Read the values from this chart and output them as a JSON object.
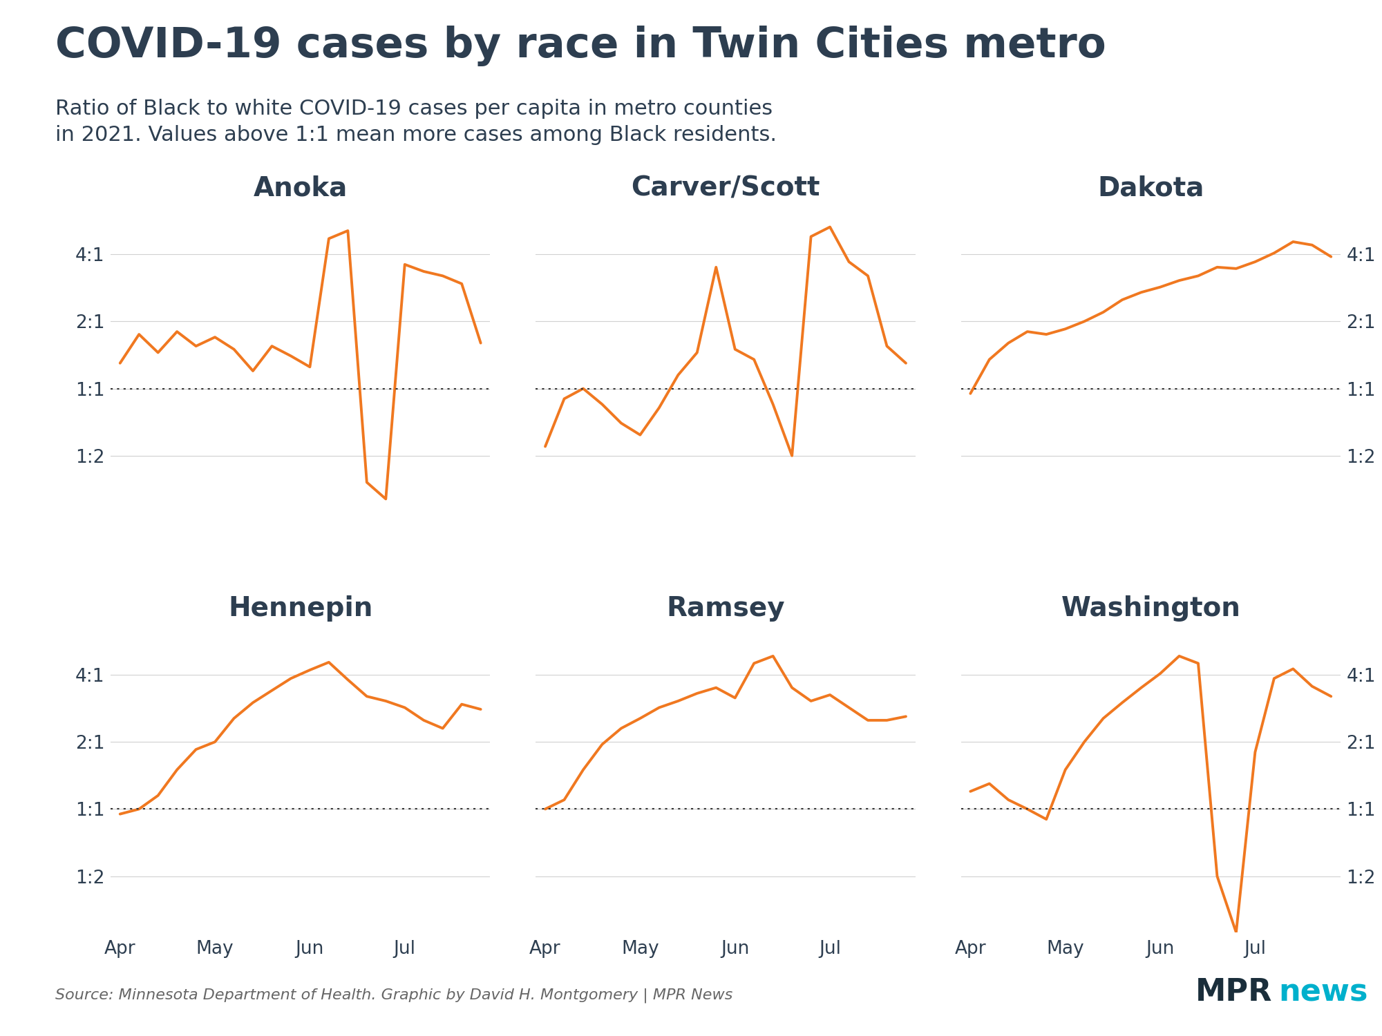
{
  "title": "COVID-19 cases by race in Twin Cities metro",
  "subtitle": "Ratio of Black to white COVID-19 cases per capita in metro counties\nin 2021. Values above 1:1 mean more cases among Black residents.",
  "source": "Source: Minnesota Department of Health. Graphic by David H. Montgomery | MPR News",
  "line_color": "#f07820",
  "background_color": "#ffffff",
  "title_color": "#2d3e50",
  "subtitle_color": "#2d3e50",
  "grid_color": "#d0d0d0",
  "dotted_line_color": "#333333",
  "counties": [
    "Anoka",
    "Carver/Scott",
    "Dakota",
    "Hennepin",
    "Ramsey",
    "Washington"
  ],
  "ytick_labels": [
    "4:1",
    "2:1",
    "1:1",
    "1:2"
  ],
  "ytick_values": [
    4.0,
    2.0,
    1.0,
    0.5
  ],
  "ylim_low": 0.28,
  "ylim_high": 6.5,
  "anoka": [
    1.3,
    1.75,
    1.45,
    1.8,
    1.55,
    1.7,
    1.5,
    1.2,
    1.55,
    1.4,
    1.25,
    4.7,
    5.1,
    0.38,
    0.32,
    3.6,
    3.35,
    3.2,
    2.95,
    1.6
  ],
  "carver_scott": [
    0.55,
    0.9,
    1.0,
    0.85,
    0.7,
    0.62,
    0.82,
    1.15,
    1.45,
    3.5,
    1.5,
    1.35,
    0.85,
    0.5,
    4.8,
    5.3,
    3.7,
    3.2,
    1.55,
    1.3
  ],
  "dakota": [
    0.95,
    1.35,
    1.6,
    1.8,
    1.75,
    1.85,
    2.0,
    2.2,
    2.5,
    2.7,
    2.85,
    3.05,
    3.2,
    3.5,
    3.45,
    3.7,
    4.05,
    4.55,
    4.4,
    3.9
  ],
  "hennepin": [
    0.95,
    1.0,
    1.15,
    1.5,
    1.85,
    2.0,
    2.55,
    3.0,
    3.4,
    3.85,
    4.2,
    4.55,
    3.8,
    3.2,
    3.05,
    2.85,
    2.5,
    2.3,
    2.95,
    2.8
  ],
  "ramsey": [
    1.0,
    1.1,
    1.5,
    1.95,
    2.3,
    2.55,
    2.85,
    3.05,
    3.3,
    3.5,
    3.15,
    4.5,
    4.85,
    3.5,
    3.05,
    3.25,
    2.85,
    2.5,
    2.5,
    2.6
  ],
  "washington": [
    1.2,
    1.3,
    1.1,
    1.0,
    0.9,
    1.5,
    2.0,
    2.55,
    3.0,
    3.5,
    4.05,
    4.85,
    4.5,
    0.5,
    0.28,
    1.8,
    3.85,
    4.25,
    3.55,
    3.2
  ]
}
